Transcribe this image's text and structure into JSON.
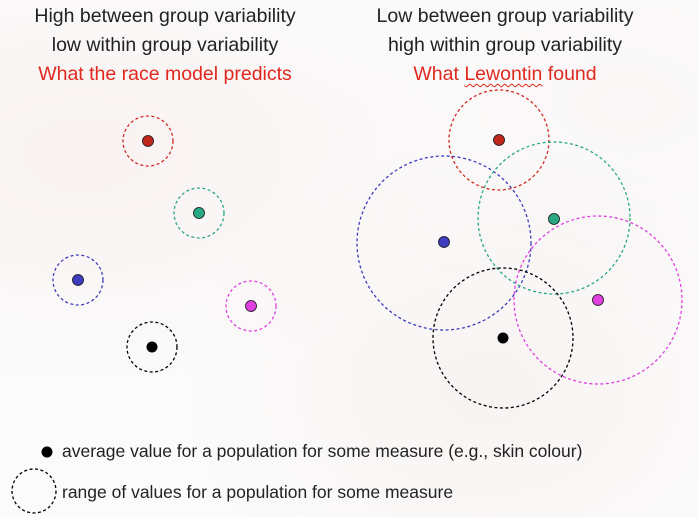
{
  "left_panel": {
    "line1": "High between group variability",
    "line2": "low within group variability",
    "caption": "What the race model predicts"
  },
  "right_panel": {
    "line1": "Low between group variability",
    "line2": "high within group variability",
    "caption_prefix": "What ",
    "caption_word": "Lewontin",
    "caption_suffix": " found"
  },
  "legend": {
    "dot_label": "average value for a population for some measure (e.g., skin colour)",
    "circle_label": "range of values for a population for some measure"
  },
  "colors": {
    "red": "#d22b20",
    "green": "#2aa884",
    "blue": "#3d3dbd",
    "magenta": "#e040e0",
    "black": "#000000",
    "caption_red": "#e0281e"
  }
}
